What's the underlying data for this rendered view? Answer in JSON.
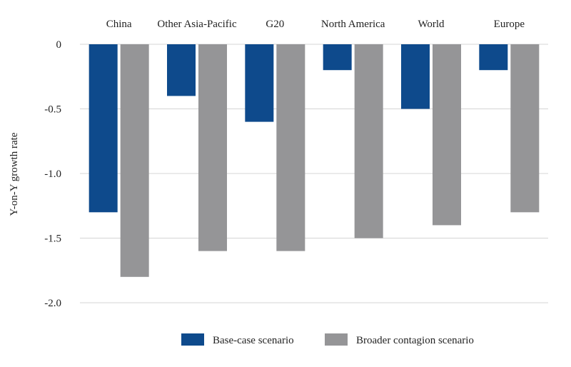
{
  "chart_data": {
    "type": "bar",
    "title": "",
    "xlabel": "",
    "ylabel": "Y-on-Y growth rate",
    "categories": [
      "China",
      "Other Asia-Pacific",
      "G20",
      "North America",
      "World",
      "Europe"
    ],
    "series": [
      {
        "name": "Base-case scenario",
        "color": "#0e4a8c",
        "values": [
          -1.3,
          -0.4,
          -0.6,
          -0.2,
          -0.5,
          -0.2
        ]
      },
      {
        "name": "Broader contagion scenario",
        "color": "#959597",
        "values": [
          -1.8,
          -1.6,
          -1.6,
          -1.5,
          -1.4,
          -1.3
        ]
      }
    ],
    "yticks": [
      0,
      -0.5,
      -1.0,
      -1.5,
      -2.0
    ],
    "ytick_labels": [
      "0",
      "-0.5",
      "-1.0",
      "-1.5",
      "-2.0"
    ],
    "ylim": [
      -2.0,
      0
    ],
    "grid": true,
    "legend_position": "bottom-center",
    "category_labels_position": "top"
  }
}
